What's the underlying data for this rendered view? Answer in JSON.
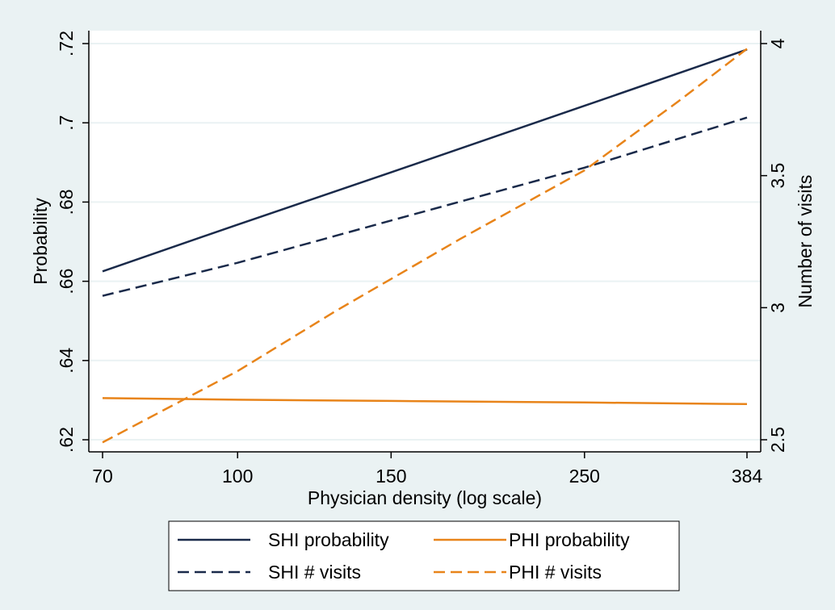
{
  "chart_data": {
    "type": "line",
    "title": "",
    "x": {
      "label": "Physician density (log scale)",
      "scale": "log",
      "range": [
        70,
        384
      ],
      "ticks": [
        70,
        100,
        150,
        250,
        384
      ],
      "tick_labels": [
        "70",
        "100",
        "150",
        "250",
        "384"
      ]
    },
    "y_left": {
      "label": "Probability",
      "range": [
        0.62,
        0.72
      ],
      "ticks": [
        0.62,
        0.64,
        0.66,
        0.68,
        0.7,
        0.72
      ],
      "tick_labels": [
        ".62",
        ".64",
        ".66",
        ".68",
        ".7",
        ".72"
      ]
    },
    "y_right": {
      "label": "Number of visits",
      "range": [
        2.5,
        4.0
      ],
      "ticks": [
        2.5,
        3.0,
        3.5,
        4.0
      ],
      "tick_labels": [
        "2.5",
        "3",
        "3.5",
        "4"
      ]
    },
    "grid": true,
    "series": [
      {
        "name": "SHI probability",
        "axis": "left",
        "color": "#1a2a4a",
        "dash": "solid",
        "x": [
          70,
          100,
          150,
          250,
          384
        ],
        "values": [
          0.6625,
          0.6743,
          0.6875,
          0.7043,
          0.7185
        ]
      },
      {
        "name": "PHI probability",
        "axis": "left",
        "color": "#e8841a",
        "dash": "solid",
        "x": [
          70,
          100,
          150,
          250,
          384
        ],
        "values": [
          0.6305,
          0.6301,
          0.6298,
          0.6294,
          0.629
        ]
      },
      {
        "name": "SHI # visits",
        "axis": "right",
        "color": "#1a2a4a",
        "dash": "dashed",
        "x": [
          70,
          100,
          150,
          250,
          384
        ],
        "values": [
          3.045,
          3.17,
          3.33,
          3.53,
          3.72
        ]
      },
      {
        "name": "PHI # visits",
        "axis": "right",
        "color": "#e8841a",
        "dash": "dashed",
        "x": [
          70,
          100,
          130,
          180,
          250,
          320,
          384
        ],
        "values": [
          2.49,
          2.76,
          2.99,
          3.26,
          3.52,
          3.78,
          3.98
        ]
      }
    ],
    "legend": {
      "position": "bottom",
      "columns": 2,
      "entries": [
        "SHI probability",
        "PHI probability",
        "SHI # visits",
        "PHI # visits"
      ]
    },
    "colors": {
      "outer_background": "#eaf2f3",
      "plot_background": "#ffffff",
      "grid": "#eaf2f3",
      "shi": "#1a2a4a",
      "phi": "#e8841a"
    }
  }
}
